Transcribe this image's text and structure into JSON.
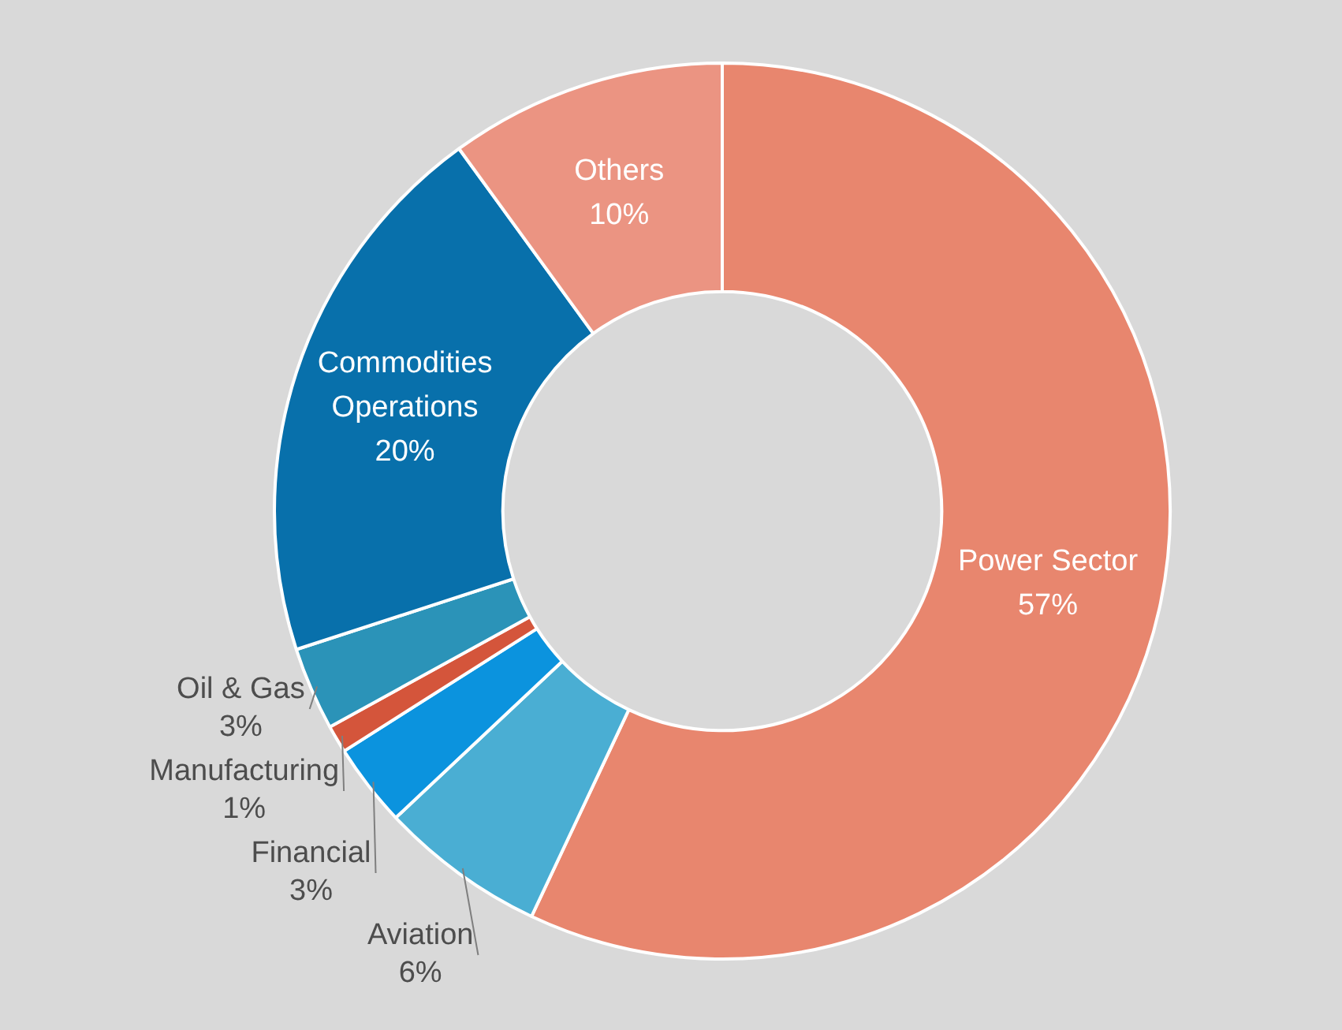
{
  "chart_data": {
    "type": "donut",
    "categories": [
      "Power Sector",
      "Aviation",
      "Financial",
      "Manufacturing",
      "Oil & Gas",
      "Commodities Operations",
      "Others"
    ],
    "values": [
      57,
      6,
      3,
      1,
      3,
      20,
      10
    ],
    "value_labels": [
      "57%",
      "6%",
      "3%",
      "1%",
      "3%",
      "20%",
      "10%"
    ],
    "colors": [
      "#e8866e",
      "#4aaed3",
      "#0b93de",
      "#d4553b",
      "#2b93b8",
      "#0870ab",
      "#eb9482"
    ],
    "data_labels": true,
    "legend": false
  }
}
